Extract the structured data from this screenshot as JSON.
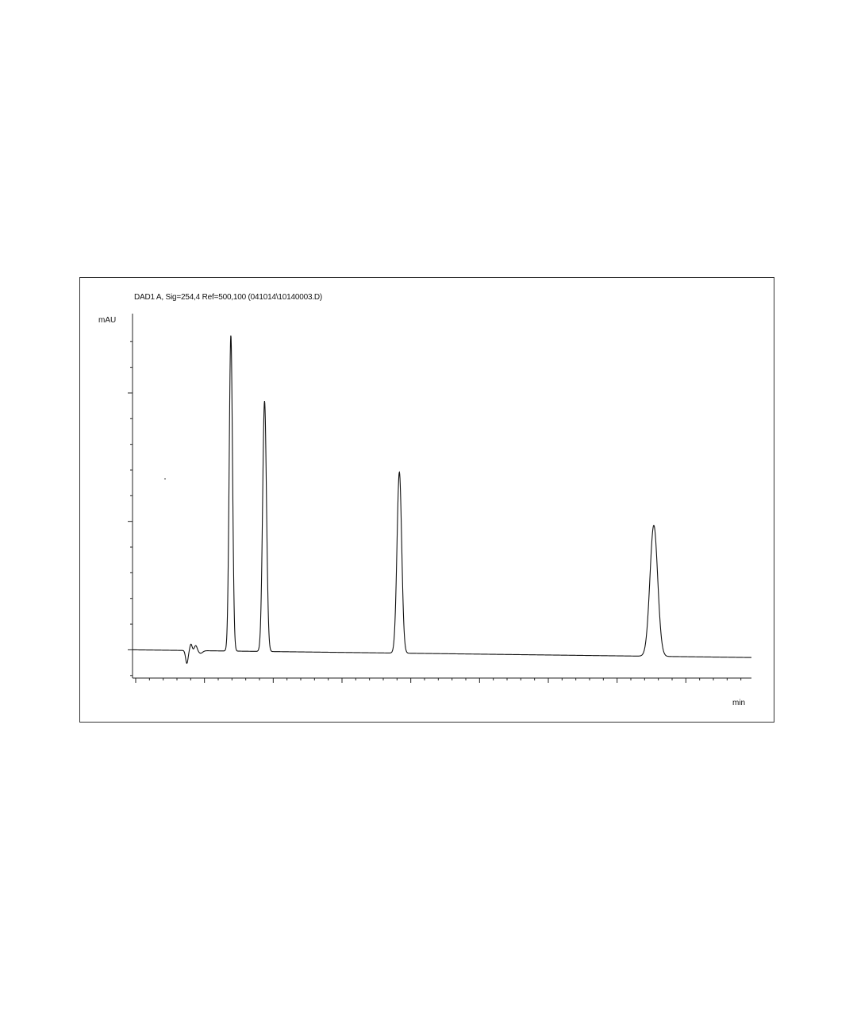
{
  "chart_data": {
    "type": "line",
    "title": "DAD1 A, Sig=254,4 Ref=500,100 (041014\\10140003.D)",
    "ylabel": "mAU",
    "xlabel": "min",
    "x_tick_labels": [],
    "y_tick_labels": [],
    "xlim": [
      0,
      45
    ],
    "ylim": [
      -2.2,
      25.5
    ],
    "grid": false,
    "legend": "none",
    "line_color": "#111111",
    "series": [
      {
        "baseline": {
          "start": 0.0,
          "end": -0.6
        },
        "disturbance": {
          "x": 4.0
        },
        "peaks": [
          {
            "x": 7.15,
            "height": 24.6,
            "width": 0.12
          },
          {
            "x": 9.6,
            "height": 19.5,
            "width": 0.14
          },
          {
            "x": 19.4,
            "height": 14.1,
            "width": 0.17
          },
          {
            "x": 37.9,
            "height": 10.2,
            "width": 0.28
          }
        ]
      }
    ]
  }
}
